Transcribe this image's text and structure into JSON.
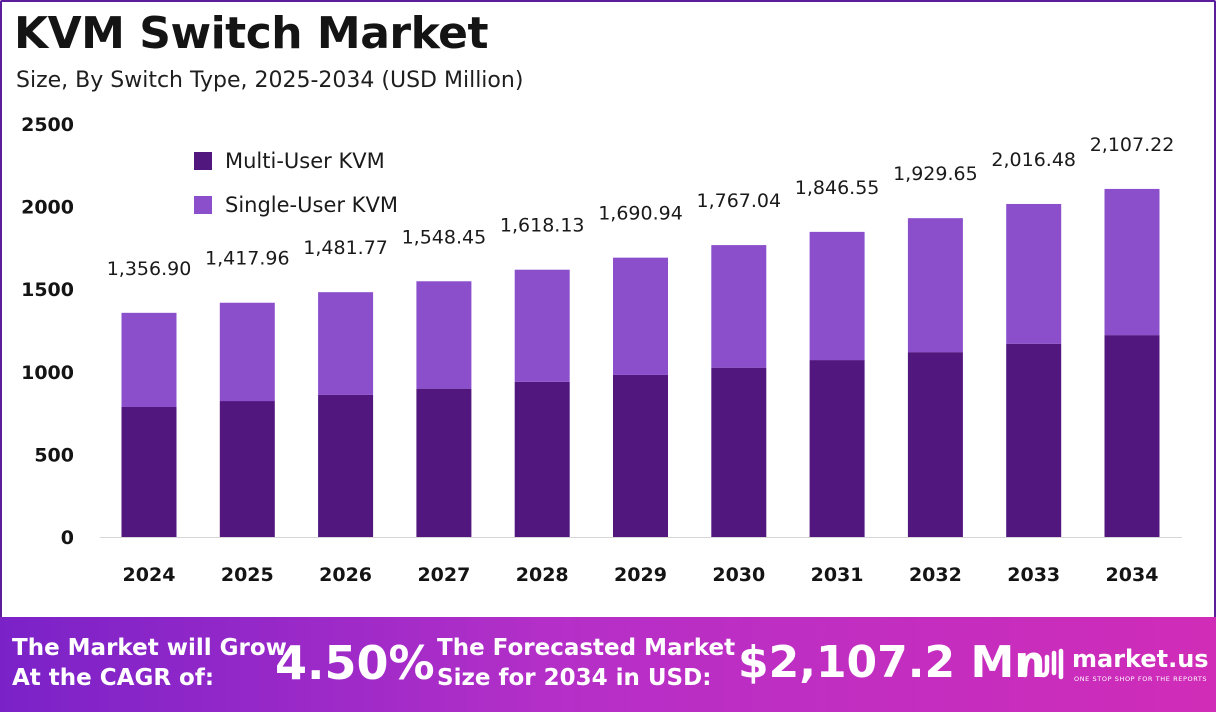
{
  "header": {
    "title": "KVM Switch Market",
    "subtitle": "Size, By Switch Type, 2025-2034 (USD Million)"
  },
  "colors": {
    "multi_user": "#52167f",
    "single_user": "#8b4fcc",
    "frame": "#5b1d9c"
  },
  "chart_data": {
    "type": "bar",
    "stacked": true,
    "categories": [
      "2024",
      "2025",
      "2026",
      "2027",
      "2028",
      "2029",
      "2030",
      "2031",
      "2032",
      "2033",
      "2034"
    ],
    "series": [
      {
        "name": "Multi-User KVM",
        "color": "#52167f",
        "values": [
          787,
          823,
          860,
          898,
          939,
          981,
          1025,
          1071,
          1119,
          1170,
          1222
        ]
      },
      {
        "name": "Single-User KVM",
        "color": "#8b4fcc",
        "values": [
          570,
          595,
          622,
          650,
          679,
          710,
          742,
          776,
          811,
          846,
          885
        ]
      }
    ],
    "totals_labels": [
      "1,356.90",
      "1,417.96",
      "1,481.77",
      "1,548.45",
      "1,618.13",
      "1,690.94",
      "1,767.04",
      "1,846.55",
      "1,929.65",
      "2,016.48",
      "2,107.22"
    ],
    "ylim": [
      0,
      2500
    ],
    "yticks": [
      0,
      500,
      1000,
      1500,
      2000,
      2500
    ],
    "legend_position": "top-left",
    "grid": false
  },
  "banner": {
    "cagr_label_line1": "The Market will Grow",
    "cagr_label_line2": "At the CAGR of:",
    "cagr_value": "4.50%",
    "forecast_label_line1": "The Forecasted Market",
    "forecast_label_line2": "Size for 2034 in USD:",
    "forecast_value": "$2,107.2 Mn",
    "logo_name": "market.us",
    "logo_tagline": "ONE STOP SHOP FOR THE REPORTS",
    "logo_icon": "market-us-logo-icon"
  }
}
